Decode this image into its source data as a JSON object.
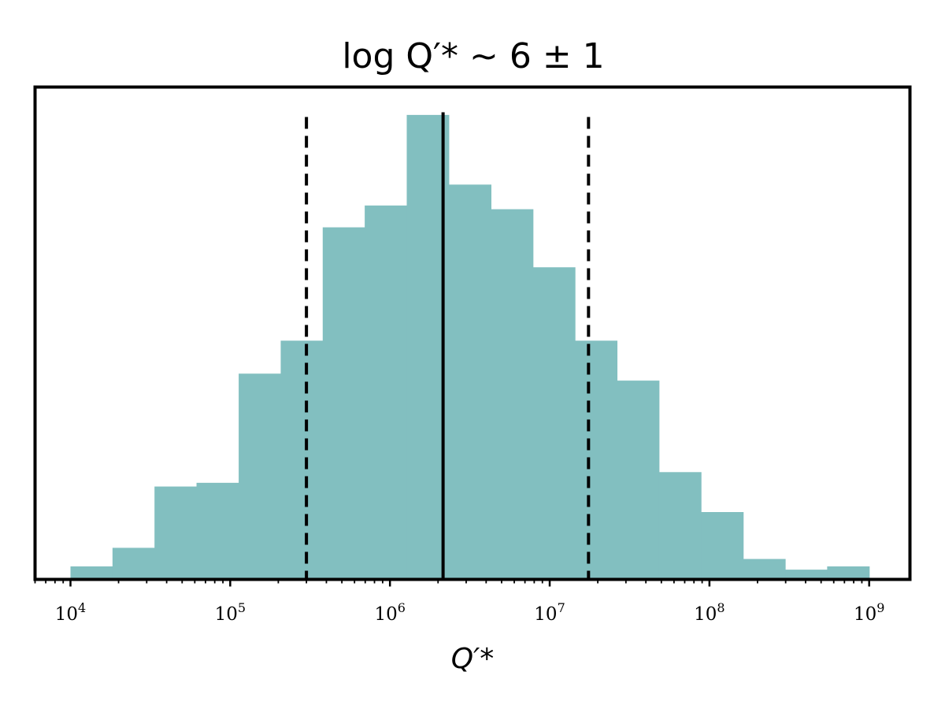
{
  "chart_data": {
    "type": "bar",
    "title": "log Q′* ~ 6 ± 1",
    "xlabel": "Q′*",
    "ylabel": "",
    "xscale": "log",
    "xlim": [
      6000,
      1800000000
    ],
    "ylim": [
      0,
      1.06
    ],
    "grid": false,
    "legend": "none",
    "bar_color": "#82bfc0",
    "x_ticks": [
      {
        "value": 10000,
        "base": "10",
        "exp": "4"
      },
      {
        "value": 100000,
        "base": "10",
        "exp": "5"
      },
      {
        "value": 1000000,
        "base": "10",
        "exp": "6"
      },
      {
        "value": 10000000,
        "base": "10",
        "exp": "7"
      },
      {
        "value": 100000000,
        "base": "10",
        "exp": "8"
      },
      {
        "value": 1000000000,
        "base": "10",
        "exp": "9"
      }
    ],
    "bins": [
      {
        "lo_log10": 4.0,
        "hi_log10": 4.263,
        "height": 0.028
      },
      {
        "lo_log10": 4.263,
        "hi_log10": 4.526,
        "height": 0.068
      },
      {
        "lo_log10": 4.526,
        "hi_log10": 4.789,
        "height": 0.2
      },
      {
        "lo_log10": 4.789,
        "hi_log10": 5.053,
        "height": 0.208
      },
      {
        "lo_log10": 5.053,
        "hi_log10": 5.316,
        "height": 0.443
      },
      {
        "lo_log10": 5.316,
        "hi_log10": 5.579,
        "height": 0.514
      },
      {
        "lo_log10": 5.579,
        "hi_log10": 5.842,
        "height": 0.758
      },
      {
        "lo_log10": 5.842,
        "hi_log10": 6.105,
        "height": 0.805
      },
      {
        "lo_log10": 6.105,
        "hi_log10": 6.368,
        "height": 1.0
      },
      {
        "lo_log10": 6.368,
        "hi_log10": 6.632,
        "height": 0.85
      },
      {
        "lo_log10": 6.632,
        "hi_log10": 6.895,
        "height": 0.797
      },
      {
        "lo_log10": 6.895,
        "hi_log10": 7.158,
        "height": 0.672
      },
      {
        "lo_log10": 7.158,
        "hi_log10": 7.421,
        "height": 0.514
      },
      {
        "lo_log10": 7.421,
        "hi_log10": 7.684,
        "height": 0.428
      },
      {
        "lo_log10": 7.684,
        "hi_log10": 7.947,
        "height": 0.231
      },
      {
        "lo_log10": 7.947,
        "hi_log10": 8.211,
        "height": 0.145
      },
      {
        "lo_log10": 8.211,
        "hi_log10": 8.474,
        "height": 0.044
      },
      {
        "lo_log10": 8.474,
        "hi_log10": 8.737,
        "height": 0.021
      },
      {
        "lo_log10": 8.737,
        "hi_log10": 9.0,
        "height": 0.028
      }
    ],
    "median_line": {
      "x": 2150000,
      "style": "solid"
    },
    "interval_lines": [
      {
        "x": 300000,
        "style": "dashed"
      },
      {
        "x": 17500000,
        "style": "dashed"
      }
    ]
  }
}
